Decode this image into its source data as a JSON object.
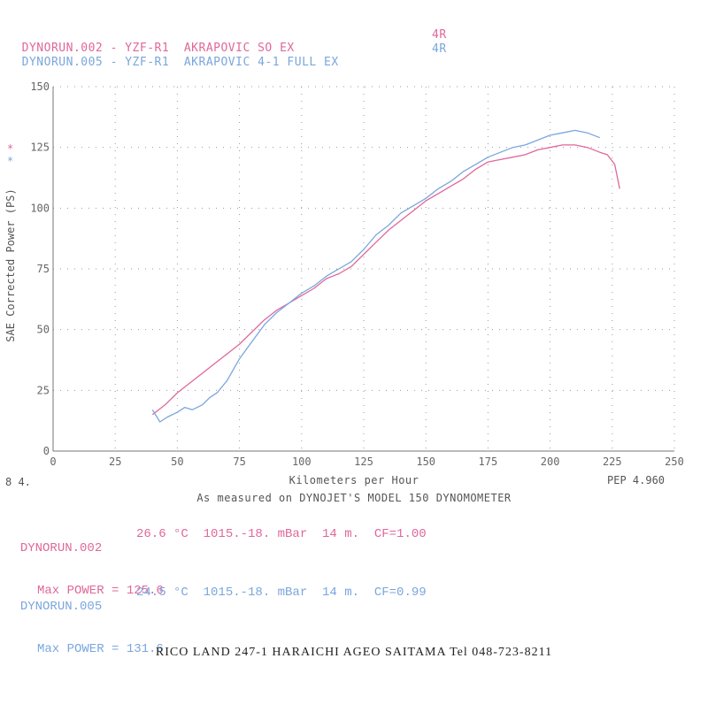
{
  "legend": [
    {
      "label": "DYNORUN.002 - YZF-R1  AKRAPOVIC SO EX",
      "rpm": "4R",
      "color": "#e0679a"
    },
    {
      "label": "DYNORUN.005 - YZF-R1  AKRAPOVIC 4-1 FULL EX",
      "rpm": "4R",
      "color": "#7aa6dd"
    }
  ],
  "chart_data": {
    "type": "line",
    "xlabel": "Kilometers per Hour",
    "ylabel": "SAE Corrected Power (PS)",
    "xlim": [
      0,
      250
    ],
    "ylim": [
      0,
      150
    ],
    "x_ticks": [
      "0",
      "25",
      "50",
      "75",
      "100",
      "125",
      "150",
      "175",
      "200",
      "225",
      "250"
    ],
    "y_ticks": [
      "0",
      "25",
      "50",
      "75",
      "100",
      "125",
      "150"
    ],
    "grid": true,
    "series": [
      {
        "name": "DYNORUN.002",
        "color": "#e0679a",
        "x": [
          40,
          45,
          50,
          55,
          60,
          65,
          70,
          75,
          80,
          85,
          90,
          95,
          100,
          105,
          110,
          115,
          120,
          125,
          130,
          135,
          140,
          145,
          150,
          155,
          160,
          165,
          170,
          175,
          180,
          185,
          190,
          195,
          200,
          205,
          210,
          215,
          220,
          223,
          226,
          228
        ],
        "y": [
          15,
          19,
          24,
          28,
          32,
          36,
          40,
          44,
          49,
          54,
          58,
          61,
          64,
          67,
          71,
          73,
          76,
          81,
          86,
          91,
          95,
          99,
          103,
          106,
          109,
          112,
          116,
          119,
          120,
          121,
          122,
          124,
          125,
          126,
          126,
          125,
          123,
          122,
          118,
          108
        ]
      },
      {
        "name": "DYNORUN.005",
        "color": "#7aa6dd",
        "x": [
          40,
          43,
          46,
          50,
          53,
          56,
          60,
          63,
          66,
          70,
          75,
          80,
          85,
          90,
          95,
          100,
          105,
          110,
          115,
          120,
          125,
          130,
          135,
          140,
          145,
          150,
          155,
          160,
          165,
          170,
          175,
          180,
          185,
          190,
          195,
          200,
          205,
          210,
          215,
          220
        ],
        "y": [
          17,
          12,
          14,
          16,
          18,
          17,
          19,
          22,
          24,
          29,
          38,
          45,
          52,
          57,
          61,
          65,
          68,
          72,
          75,
          78,
          83,
          89,
          93,
          98,
          101,
          104,
          108,
          111,
          115,
          118,
          121,
          123,
          125,
          126,
          128,
          130,
          131,
          132,
          131,
          129
        ]
      }
    ]
  },
  "xlabel_text": "Kilometers per Hour",
  "ylabel_text": "SAE Corrected Power (PS)",
  "caption": "As measured on DYNOJET'S MODEL 150 DYNOMOMETER",
  "corner_left": "8  4.",
  "corner_right": "PEP 4.960",
  "runs": [
    {
      "id": "DYNORUN.002",
      "conditions": "26.6 °C  1015.-18. mBar  14 m.  CF=1.00",
      "max_power": "Max POWER = 125.6",
      "color": "#e0679a"
    },
    {
      "id": "DYNORUN.005",
      "conditions": "24.5 °C  1015.-18. mBar  14 m.  CF=0.99",
      "max_power": "Max POWER = 131.6",
      "color": "#7aa6dd"
    }
  ],
  "footer": "RICO LAND 247-1 HARAICHI AGEO SAITAMA Tel 048-723-8211"
}
